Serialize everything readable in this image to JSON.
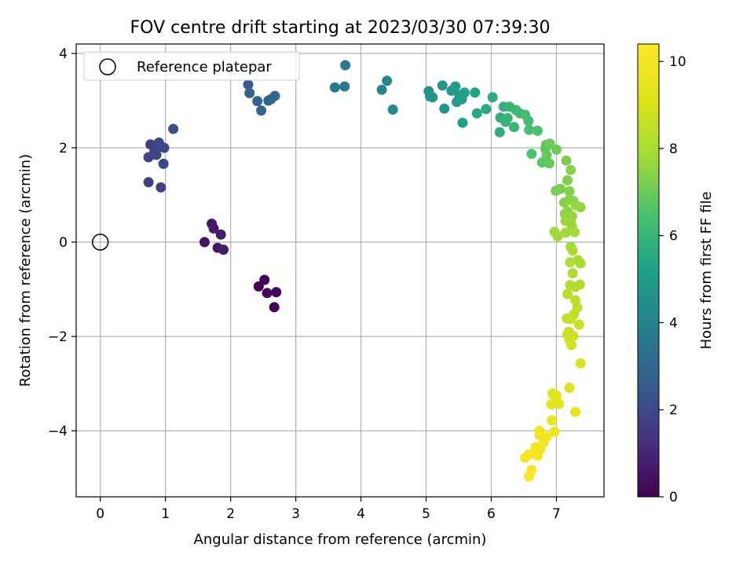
{
  "chart_data": {
    "type": "scatter",
    "title": "FOV centre drift starting at 2023/03/30 07:39:30",
    "xlabel": "Angular distance from reference (arcmin)",
    "ylabel": "Rotation from reference (arcmin)",
    "xlim": [
      -0.37,
      7.73
    ],
    "ylim": [
      -5.4,
      4.2
    ],
    "x_ticks": [
      0,
      1,
      2,
      3,
      4,
      5,
      6,
      7
    ],
    "y_ticks": [
      -4,
      -2,
      0,
      2,
      4
    ],
    "x_tick_labels": [
      "0",
      "1",
      "2",
      "3",
      "4",
      "5",
      "6",
      "7"
    ],
    "y_tick_labels": [
      "−4",
      "−2",
      "0",
      "2",
      "4"
    ],
    "grid": true,
    "legend": {
      "position": "top-left",
      "entries": [
        "Reference platepar"
      ]
    },
    "reference_point": {
      "x": 0,
      "y": 0
    },
    "colorbar": {
      "label": "Hours from first FF file",
      "colormap": "viridis",
      "range": [
        0,
        10.4
      ],
      "ticks": [
        0,
        2,
        4,
        6,
        8,
        10
      ],
      "tick_labels": [
        "0",
        "2",
        "4",
        "6",
        "8",
        "10"
      ]
    },
    "points": [
      {
        "x": 2.43,
        "y": -0.94,
        "c": 0.1
      },
      {
        "x": 2.52,
        "y": -0.8,
        "c": 0.1
      },
      {
        "x": 2.56,
        "y": -1.08,
        "c": 0.15
      },
      {
        "x": 2.7,
        "y": -1.06,
        "c": 0.1
      },
      {
        "x": 2.67,
        "y": -1.38,
        "c": 0.05
      },
      {
        "x": 1.6,
        "y": 0.0,
        "c": 0.5
      },
      {
        "x": 1.71,
        "y": 0.39,
        "c": 0.6
      },
      {
        "x": 1.74,
        "y": 0.29,
        "c": 0.65
      },
      {
        "x": 1.8,
        "y": -0.12,
        "c": 0.6
      },
      {
        "x": 1.85,
        "y": 0.16,
        "c": 0.7
      },
      {
        "x": 1.89,
        "y": -0.16,
        "c": 0.7
      },
      {
        "x": 0.74,
        "y": 1.27,
        "c": 1.7
      },
      {
        "x": 0.74,
        "y": 1.8,
        "c": 1.8
      },
      {
        "x": 0.77,
        "y": 2.07,
        "c": 1.8
      },
      {
        "x": 0.83,
        "y": 1.92,
        "c": 1.9
      },
      {
        "x": 0.88,
        "y": 2.0,
        "c": 1.9
      },
      {
        "x": 0.9,
        "y": 2.11,
        "c": 2.0
      },
      {
        "x": 0.93,
        "y": 1.16,
        "c": 1.8
      },
      {
        "x": 0.97,
        "y": 1.66,
        "c": 2.0
      },
      {
        "x": 0.98,
        "y": 2.0,
        "c": 2.0
      },
      {
        "x": 1.12,
        "y": 2.4,
        "c": 2.2
      },
      {
        "x": 0.86,
        "y": 1.85,
        "c": 1.95
      },
      {
        "x": 2.27,
        "y": 3.34,
        "c": 2.6
      },
      {
        "x": 2.29,
        "y": 3.16,
        "c": 2.7
      },
      {
        "x": 2.41,
        "y": 2.99,
        "c": 2.8
      },
      {
        "x": 2.47,
        "y": 2.79,
        "c": 2.9
      },
      {
        "x": 2.58,
        "y": 3.0,
        "c": 2.9
      },
      {
        "x": 2.62,
        "y": 3.03,
        "c": 2.95
      },
      {
        "x": 2.68,
        "y": 3.1,
        "c": 3.0
      },
      {
        "x": 3.6,
        "y": 3.28,
        "c": 3.6
      },
      {
        "x": 3.75,
        "y": 3.3,
        "c": 3.7
      },
      {
        "x": 3.76,
        "y": 3.75,
        "c": 3.7
      },
      {
        "x": 4.32,
        "y": 3.23,
        "c": 4.1
      },
      {
        "x": 4.4,
        "y": 3.42,
        "c": 4.2
      },
      {
        "x": 4.49,
        "y": 2.81,
        "c": 4.3
      },
      {
        "x": 5.04,
        "y": 3.2,
        "c": 4.6
      },
      {
        "x": 5.06,
        "y": 3.09,
        "c": 4.7
      },
      {
        "x": 5.1,
        "y": 3.07,
        "c": 4.7
      },
      {
        "x": 5.25,
        "y": 3.32,
        "c": 4.8
      },
      {
        "x": 5.28,
        "y": 2.83,
        "c": 4.9
      },
      {
        "x": 5.39,
        "y": 3.21,
        "c": 4.9
      },
      {
        "x": 5.45,
        "y": 3.3,
        "c": 5.0
      },
      {
        "x": 5.47,
        "y": 2.97,
        "c": 5.0
      },
      {
        "x": 5.51,
        "y": 3.11,
        "c": 5.1
      },
      {
        "x": 5.55,
        "y": 3.03,
        "c": 5.1
      },
      {
        "x": 5.56,
        "y": 2.53,
        "c": 5.2
      },
      {
        "x": 5.59,
        "y": 3.17,
        "c": 5.2
      },
      {
        "x": 5.75,
        "y": 3.17,
        "c": 5.3
      },
      {
        "x": 5.78,
        "y": 2.73,
        "c": 5.4
      },
      {
        "x": 5.92,
        "y": 2.82,
        "c": 5.5
      },
      {
        "x": 6.02,
        "y": 3.07,
        "c": 5.6
      },
      {
        "x": 6.13,
        "y": 2.33,
        "c": 5.7
      },
      {
        "x": 6.14,
        "y": 2.64,
        "c": 5.8
      },
      {
        "x": 6.19,
        "y": 2.87,
        "c": 5.8
      },
      {
        "x": 6.22,
        "y": 2.55,
        "c": 5.9
      },
      {
        "x": 6.25,
        "y": 2.63,
        "c": 5.9
      },
      {
        "x": 6.28,
        "y": 2.87,
        "c": 6.0
      },
      {
        "x": 6.35,
        "y": 2.44,
        "c": 6.0
      },
      {
        "x": 6.38,
        "y": 2.8,
        "c": 6.1
      },
      {
        "x": 6.44,
        "y": 2.73,
        "c": 6.2
      },
      {
        "x": 6.52,
        "y": 2.7,
        "c": 6.3
      },
      {
        "x": 6.57,
        "y": 2.57,
        "c": 6.3
      },
      {
        "x": 6.58,
        "y": 2.38,
        "c": 6.4
      },
      {
        "x": 6.62,
        "y": 1.87,
        "c": 6.5
      },
      {
        "x": 6.71,
        "y": 2.36,
        "c": 6.5
      },
      {
        "x": 6.78,
        "y": 1.69,
        "c": 6.7
      },
      {
        "x": 6.83,
        "y": 1.98,
        "c": 6.8
      },
      {
        "x": 6.84,
        "y": 2.06,
        "c": 6.8
      },
      {
        "x": 6.85,
        "y": 1.84,
        "c": 6.9
      },
      {
        "x": 6.89,
        "y": 1.67,
        "c": 6.9
      },
      {
        "x": 6.9,
        "y": 2.09,
        "c": 7.0
      },
      {
        "x": 7.0,
        "y": 1.96,
        "c": 7.0
      },
      {
        "x": 6.99,
        "y": 1.09,
        "c": 7.2
      },
      {
        "x": 7.06,
        "y": 1.13,
        "c": 7.2
      },
      {
        "x": 7.15,
        "y": 1.73,
        "c": 7.2
      },
      {
        "x": 7.17,
        "y": 1.31,
        "c": 7.3
      },
      {
        "x": 7.2,
        "y": 1.08,
        "c": 7.3
      },
      {
        "x": 7.22,
        "y": 1.53,
        "c": 7.4
      },
      {
        "x": 7.12,
        "y": 0.84,
        "c": 7.4
      },
      {
        "x": 7.2,
        "y": 0.9,
        "c": 7.4
      },
      {
        "x": 7.26,
        "y": 0.87,
        "c": 7.5
      },
      {
        "x": 7.13,
        "y": 0.6,
        "c": 7.5
      },
      {
        "x": 7.17,
        "y": 0.65,
        "c": 7.5
      },
      {
        "x": 7.24,
        "y": 0.55,
        "c": 7.6
      },
      {
        "x": 7.3,
        "y": 0.78,
        "c": 7.6
      },
      {
        "x": 7.37,
        "y": 0.74,
        "c": 7.6
      },
      {
        "x": 7.14,
        "y": 0.45,
        "c": 7.7
      },
      {
        "x": 7.22,
        "y": 0.45,
        "c": 7.7
      },
      {
        "x": 7.24,
        "y": 0.33,
        "c": 7.7
      },
      {
        "x": 6.97,
        "y": 0.22,
        "c": 7.8
      },
      {
        "x": 7.02,
        "y": 0.12,
        "c": 7.8
      },
      {
        "x": 7.14,
        "y": 0.2,
        "c": 7.8
      },
      {
        "x": 7.28,
        "y": 0.21,
        "c": 7.9
      },
      {
        "x": 7.22,
        "y": -0.1,
        "c": 7.9
      },
      {
        "x": 7.25,
        "y": -0.18,
        "c": 8.0
      },
      {
        "x": 7.33,
        "y": -0.38,
        "c": 8.0
      },
      {
        "x": 7.37,
        "y": -0.45,
        "c": 8.0
      },
      {
        "x": 7.21,
        "y": -0.43,
        "c": 8.1
      },
      {
        "x": 7.25,
        "y": -0.66,
        "c": 8.1
      },
      {
        "x": 7.21,
        "y": -0.91,
        "c": 8.2
      },
      {
        "x": 7.29,
        "y": -0.95,
        "c": 8.2
      },
      {
        "x": 7.36,
        "y": -0.9,
        "c": 8.2
      },
      {
        "x": 7.17,
        "y": -1.1,
        "c": 8.3
      },
      {
        "x": 7.29,
        "y": -1.23,
        "c": 8.4
      },
      {
        "x": 7.32,
        "y": -1.39,
        "c": 8.4
      },
      {
        "x": 7.27,
        "y": -1.53,
        "c": 8.5
      },
      {
        "x": 7.16,
        "y": -1.62,
        "c": 8.5
      },
      {
        "x": 7.22,
        "y": -1.63,
        "c": 8.6
      },
      {
        "x": 7.35,
        "y": -1.75,
        "c": 8.6
      },
      {
        "x": 7.19,
        "y": -1.9,
        "c": 8.7
      },
      {
        "x": 7.17,
        "y": -1.96,
        "c": 8.7
      },
      {
        "x": 7.26,
        "y": -1.99,
        "c": 8.8
      },
      {
        "x": 7.2,
        "y": -2.07,
        "c": 8.8
      },
      {
        "x": 7.23,
        "y": -2.18,
        "c": 8.9
      },
      {
        "x": 7.37,
        "y": -2.57,
        "c": 9.0
      },
      {
        "x": 7.2,
        "y": -3.09,
        "c": 9.2
      },
      {
        "x": 6.94,
        "y": -3.21,
        "c": 9.3
      },
      {
        "x": 7.0,
        "y": -3.25,
        "c": 9.3
      },
      {
        "x": 6.92,
        "y": -3.44,
        "c": 9.4
      },
      {
        "x": 6.98,
        "y": -3.37,
        "c": 9.4
      },
      {
        "x": 7.04,
        "y": -3.43,
        "c": 9.5
      },
      {
        "x": 7.29,
        "y": -3.6,
        "c": 9.5
      },
      {
        "x": 6.93,
        "y": -3.78,
        "c": 9.6
      },
      {
        "x": 6.97,
        "y": -4.02,
        "c": 9.7
      },
      {
        "x": 6.74,
        "y": -4.0,
        "c": 9.8
      },
      {
        "x": 6.74,
        "y": -4.09,
        "c": 9.8
      },
      {
        "x": 6.85,
        "y": -4.13,
        "c": 9.9
      },
      {
        "x": 6.8,
        "y": -4.25,
        "c": 9.9
      },
      {
        "x": 6.68,
        "y": -4.35,
        "c": 10.0
      },
      {
        "x": 6.67,
        "y": -4.48,
        "c": 10.0
      },
      {
        "x": 6.71,
        "y": -4.53,
        "c": 10.1
      },
      {
        "x": 6.58,
        "y": -4.5,
        "c": 10.1
      },
      {
        "x": 6.52,
        "y": -4.57,
        "c": 10.2
      },
      {
        "x": 6.62,
        "y": -4.83,
        "c": 10.2
      },
      {
        "x": 6.58,
        "y": -4.97,
        "c": 10.3
      },
      {
        "x": 6.75,
        "y": -4.4,
        "c": 10.0
      }
    ]
  }
}
